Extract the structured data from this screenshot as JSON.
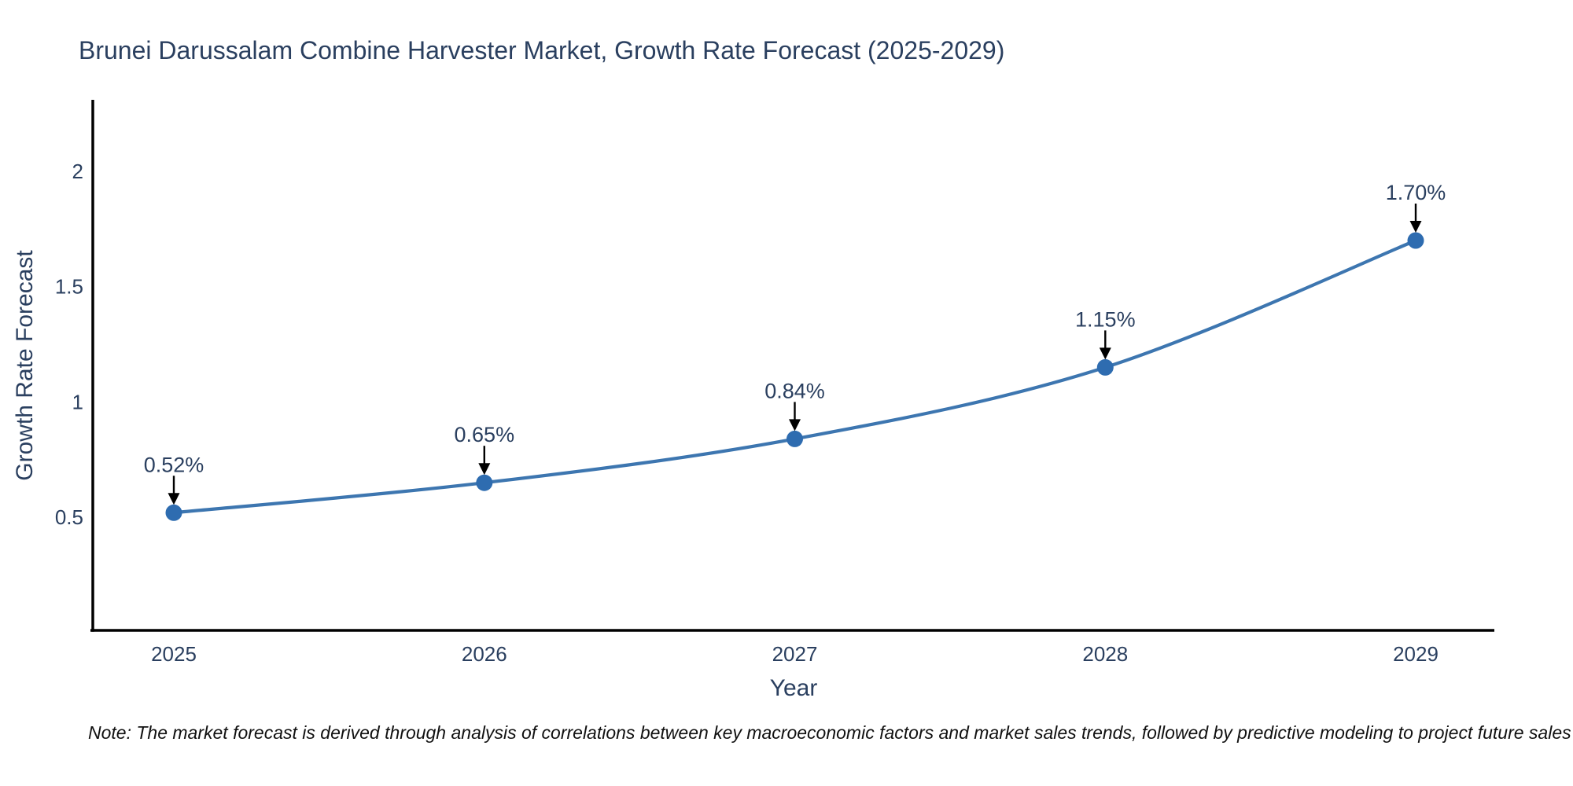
{
  "figure": {
    "title": "Brunei Darussalam Combine Harvester Market, Growth Rate Forecast (2025-2029)"
  },
  "chart_data": {
    "type": "line",
    "title": "Brunei Darussalam Combine Harvester Market, Growth Rate Forecast (2025-2029)",
    "xlabel": "Year",
    "ylabel": "Growth Rate Forecast",
    "categories": [
      2025,
      2026,
      2027,
      2028,
      2029
    ],
    "series": [
      {
        "name": "Growth Rate Forecast",
        "values": [
          0.52,
          0.65,
          0.84,
          1.15,
          1.7
        ]
      }
    ],
    "point_labels": [
      "0.52%",
      "0.65%",
      "0.84%",
      "1.15%",
      "1.70%"
    ],
    "x_tick_labels": [
      "2025",
      "2026",
      "2027",
      "2028",
      "2029"
    ],
    "y_ticks": [
      0.5,
      1,
      1.5,
      2
    ],
    "y_tick_labels": [
      "0.5",
      "1",
      "1.5",
      "2"
    ],
    "ylim": [
      0.01,
      2.31
    ],
    "grid": false,
    "legend_position": "none",
    "annotations_have_arrows": true,
    "colors": {
      "line": "#3d76b0",
      "marker": "#2e6cb0",
      "axis_line": "#000000",
      "tick_text": "#2a3f5f",
      "annotation_text": "#2a3f5f",
      "annotation_arrow": "#000000",
      "background": "#ffffff"
    },
    "note": "Note: The market forecast is derived through analysis of correlations between key macroeconomic factors and market sales trends, followed by predictive modeling to project future sales"
  }
}
